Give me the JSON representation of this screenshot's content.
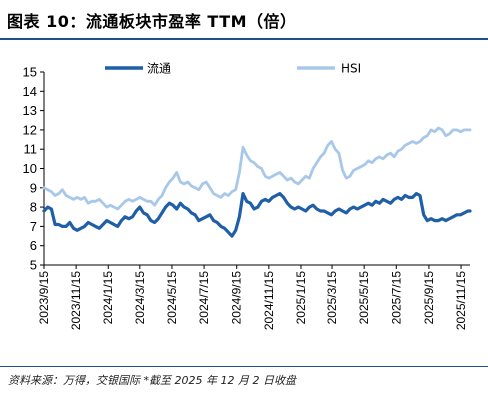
{
  "title": "图表 10：流通板块市盈率 TTM（倍）",
  "source": "资料来源：万得，交银国际   *截至 2025 年 12 月 2 日收盘",
  "colors": {
    "series_1": "#1f5fa8",
    "series_2": "#a8c8ea",
    "rule": "#1f4e8c"
  },
  "chart_data": {
    "type": "line",
    "title": "",
    "xlabel": "",
    "ylabel": "",
    "ylim": [
      5,
      15
    ],
    "yticks": [
      "5",
      "6",
      "7",
      "8",
      "9",
      "10",
      "11",
      "12",
      "13",
      "14",
      "15"
    ],
    "xlim": [
      "2023-09-15",
      "2025-12-02"
    ],
    "xticks": [
      "2023/9/15",
      "2023/11/15",
      "2024/1/15",
      "2024/3/15",
      "2024/5/15",
      "2024/7/15",
      "2024/9/15",
      "2024/11/15",
      "2025/1/15",
      "2025/3/15",
      "2025/5/15",
      "2025/7/15",
      "2025/9/15",
      "2025/11/15"
    ],
    "legend_position": "top",
    "grid": false,
    "series": [
      {
        "name": "流通",
        "x": [
          "2023-09-15",
          "2023-09-22",
          "2023-09-29",
          "2023-10-06",
          "2023-10-13",
          "2023-10-20",
          "2023-10-27",
          "2023-11-03",
          "2023-11-10",
          "2023-11-17",
          "2023-11-24",
          "2023-12-01",
          "2023-12-08",
          "2023-12-15",
          "2023-12-22",
          "2023-12-29",
          "2024-01-05",
          "2024-01-12",
          "2024-01-19",
          "2024-01-26",
          "2024-02-02",
          "2024-02-09",
          "2024-02-16",
          "2024-02-23",
          "2024-03-01",
          "2024-03-08",
          "2024-03-15",
          "2024-03-22",
          "2024-03-29",
          "2024-04-05",
          "2024-04-12",
          "2024-04-19",
          "2024-04-26",
          "2024-05-03",
          "2024-05-10",
          "2024-05-17",
          "2024-05-24",
          "2024-05-31",
          "2024-06-07",
          "2024-06-14",
          "2024-06-21",
          "2024-06-28",
          "2024-07-05",
          "2024-07-12",
          "2024-07-19",
          "2024-07-26",
          "2024-08-02",
          "2024-08-09",
          "2024-08-16",
          "2024-08-23",
          "2024-08-30",
          "2024-09-06",
          "2024-09-13",
          "2024-09-20",
          "2024-09-27",
          "2024-10-04",
          "2024-10-11",
          "2024-10-18",
          "2024-10-25",
          "2024-11-01",
          "2024-11-08",
          "2024-11-15",
          "2024-11-22",
          "2024-11-29",
          "2024-12-06",
          "2024-12-13",
          "2024-12-20",
          "2024-12-27",
          "2025-01-03",
          "2025-01-10",
          "2025-01-17",
          "2025-01-24",
          "2025-01-31",
          "2025-02-07",
          "2025-02-14",
          "2025-02-21",
          "2025-02-28",
          "2025-03-07",
          "2025-03-14",
          "2025-03-21",
          "2025-03-28",
          "2025-04-04",
          "2025-04-11",
          "2025-04-18",
          "2025-04-25",
          "2025-05-02",
          "2025-05-09",
          "2025-05-16",
          "2025-05-23",
          "2025-05-30",
          "2025-06-06",
          "2025-06-13",
          "2025-06-20",
          "2025-06-27",
          "2025-07-04",
          "2025-07-11",
          "2025-07-18",
          "2025-07-25",
          "2025-08-01",
          "2025-08-08",
          "2025-08-15",
          "2025-08-22",
          "2025-08-29",
          "2025-09-05",
          "2025-09-12",
          "2025-09-19",
          "2025-09-26",
          "2025-10-03",
          "2025-10-10",
          "2025-10-17",
          "2025-10-24",
          "2025-10-31",
          "2025-11-07",
          "2025-11-14",
          "2025-11-21",
          "2025-11-28",
          "2025-12-02"
        ],
        "y": [
          7.8,
          8.0,
          7.9,
          7.1,
          7.1,
          7.0,
          7.0,
          7.2,
          6.9,
          6.8,
          6.9,
          7.0,
          7.2,
          7.1,
          7.0,
          6.9,
          7.1,
          7.3,
          7.2,
          7.1,
          7.0,
          7.3,
          7.5,
          7.4,
          7.5,
          7.8,
          8.0,
          7.7,
          7.6,
          7.3,
          7.2,
          7.4,
          7.7,
          8.0,
          8.2,
          8.1,
          7.9,
          8.2,
          8.0,
          7.9,
          7.7,
          7.6,
          7.3,
          7.4,
          7.5,
          7.6,
          7.3,
          7.2,
          7.0,
          6.9,
          6.7,
          6.5,
          6.8,
          7.5,
          8.7,
          8.3,
          8.2,
          7.9,
          8.0,
          8.3,
          8.4,
          8.3,
          8.5,
          8.6,
          8.7,
          8.5,
          8.2,
          8.0,
          7.9,
          8.0,
          7.9,
          7.8,
          8.0,
          8.1,
          7.9,
          7.8,
          7.8,
          7.7,
          7.6,
          7.8,
          7.9,
          7.8,
          7.7,
          7.9,
          8.0,
          7.9,
          8.0,
          8.1,
          8.2,
          8.1,
          8.3,
          8.2,
          8.4,
          8.3,
          8.2,
          8.4,
          8.5,
          8.4,
          8.6,
          8.5,
          8.5,
          8.7,
          8.6,
          7.6,
          7.3,
          7.4,
          7.3,
          7.3,
          7.4,
          7.3,
          7.4,
          7.5,
          7.6,
          7.6,
          7.7,
          7.8,
          7.8
        ]
      },
      {
        "name": "HSI",
        "x": [
          "2023-09-15",
          "2023-09-22",
          "2023-09-29",
          "2023-10-06",
          "2023-10-13",
          "2023-10-20",
          "2023-10-27",
          "2023-11-03",
          "2023-11-10",
          "2023-11-17",
          "2023-11-24",
          "2023-12-01",
          "2023-12-08",
          "2023-12-15",
          "2023-12-22",
          "2023-12-29",
          "2024-01-05",
          "2024-01-12",
          "2024-01-19",
          "2024-01-26",
          "2024-02-02",
          "2024-02-09",
          "2024-02-16",
          "2024-02-23",
          "2024-03-01",
          "2024-03-08",
          "2024-03-15",
          "2024-03-22",
          "2024-03-29",
          "2024-04-05",
          "2024-04-12",
          "2024-04-19",
          "2024-04-26",
          "2024-05-03",
          "2024-05-10",
          "2024-05-17",
          "2024-05-24",
          "2024-05-31",
          "2024-06-07",
          "2024-06-14",
          "2024-06-21",
          "2024-06-28",
          "2024-07-05",
          "2024-07-12",
          "2024-07-19",
          "2024-07-26",
          "2024-08-02",
          "2024-08-09",
          "2024-08-16",
          "2024-08-23",
          "2024-08-30",
          "2024-09-06",
          "2024-09-13",
          "2024-09-20",
          "2024-09-27",
          "2024-10-04",
          "2024-10-11",
          "2024-10-18",
          "2024-10-25",
          "2024-11-01",
          "2024-11-08",
          "2024-11-15",
          "2024-11-22",
          "2024-11-29",
          "2024-12-06",
          "2024-12-13",
          "2024-12-20",
          "2024-12-27",
          "2025-01-03",
          "2025-01-10",
          "2025-01-17",
          "2025-01-24",
          "2025-01-31",
          "2025-02-07",
          "2025-02-14",
          "2025-02-21",
          "2025-02-28",
          "2025-03-07",
          "2025-03-14",
          "2025-03-21",
          "2025-03-28",
          "2025-04-04",
          "2025-04-11",
          "2025-04-18",
          "2025-04-25",
          "2025-05-02",
          "2025-05-09",
          "2025-05-16",
          "2025-05-23",
          "2025-05-30",
          "2025-06-06",
          "2025-06-13",
          "2025-06-20",
          "2025-06-27",
          "2025-07-04",
          "2025-07-11",
          "2025-07-18",
          "2025-07-25",
          "2025-08-01",
          "2025-08-08",
          "2025-08-15",
          "2025-08-22",
          "2025-08-29",
          "2025-09-05",
          "2025-09-12",
          "2025-09-19",
          "2025-09-26",
          "2025-10-03",
          "2025-10-10",
          "2025-10-17",
          "2025-10-24",
          "2025-10-31",
          "2025-11-07",
          "2025-11-14",
          "2025-11-21",
          "2025-11-28",
          "2025-12-02"
        ],
        "y": [
          9.0,
          8.9,
          8.8,
          8.6,
          8.7,
          8.9,
          8.6,
          8.5,
          8.4,
          8.5,
          8.4,
          8.5,
          8.2,
          8.3,
          8.3,
          8.4,
          8.2,
          8.0,
          8.1,
          8.0,
          7.9,
          8.1,
          8.3,
          8.4,
          8.3,
          8.4,
          8.5,
          8.4,
          8.3,
          8.3,
          8.1,
          8.4,
          8.6,
          9.0,
          9.3,
          9.5,
          9.8,
          9.3,
          9.2,
          9.3,
          9.1,
          9.0,
          8.9,
          9.2,
          9.3,
          9.0,
          8.7,
          8.6,
          8.5,
          8.7,
          8.6,
          8.8,
          8.9,
          9.8,
          11.1,
          10.7,
          10.4,
          10.3,
          10.1,
          10.0,
          9.6,
          9.5,
          9.6,
          9.7,
          9.8,
          9.6,
          9.4,
          9.5,
          9.3,
          9.2,
          9.4,
          9.6,
          9.5,
          10.0,
          10.3,
          10.6,
          10.8,
          11.2,
          11.4,
          11.0,
          10.8,
          9.9,
          9.5,
          9.6,
          9.9,
          10.0,
          10.1,
          10.2,
          10.4,
          10.3,
          10.5,
          10.6,
          10.5,
          10.7,
          10.8,
          10.6,
          10.9,
          11.0,
          11.2,
          11.3,
          11.4,
          11.3,
          11.4,
          11.6,
          11.7,
          12.0,
          11.9,
          12.1,
          12.0,
          11.7,
          11.8,
          12.0,
          12.0,
          11.9,
          12.0,
          12.0,
          12.0
        ]
      }
    ]
  }
}
